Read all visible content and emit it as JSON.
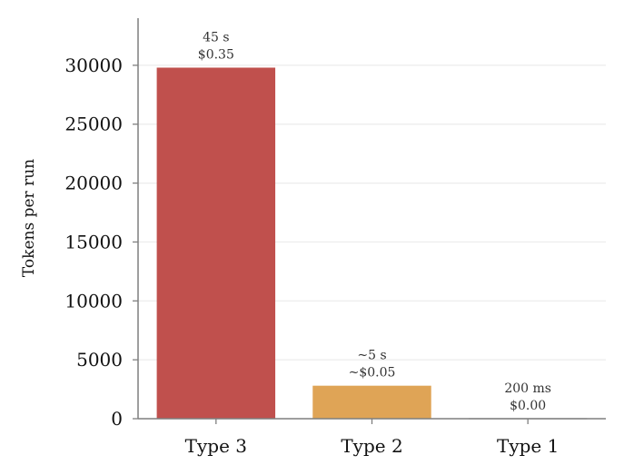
{
  "chart_data": {
    "type": "bar",
    "categories": [
      "Type 3",
      "Type 2",
      "Type 1"
    ],
    "values": [
      29800,
      2800,
      0
    ],
    "bar_colors": [
      "#c0504d",
      "#dfa456",
      "#8c8c8c"
    ],
    "data_labels": [
      [
        "45 s",
        "$0.35"
      ],
      [
        "~5 s",
        "~$0.05"
      ],
      [
        "200 ms",
        "$0.00"
      ]
    ],
    "ylabel": "Tokens per run",
    "xlabel": "",
    "ylim": [
      0,
      34000
    ],
    "yticks": [
      0,
      5000,
      10000,
      15000,
      20000,
      25000,
      30000
    ],
    "grid": "horizontal",
    "axis_color": "#7f7f7f",
    "grid_color": "#ececec"
  }
}
